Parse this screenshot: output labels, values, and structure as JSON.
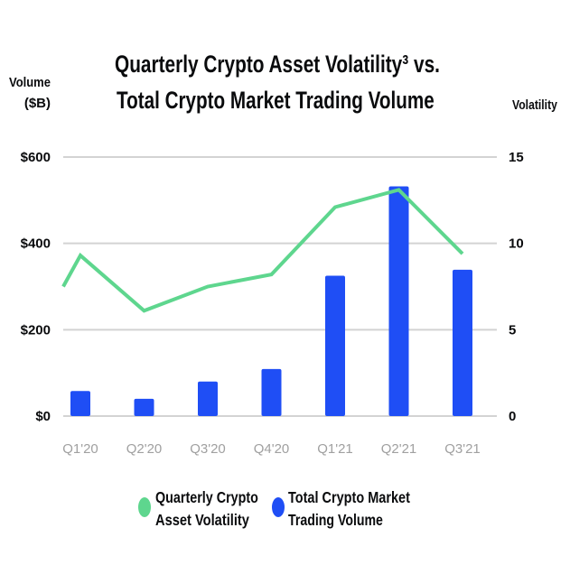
{
  "chart_data": {
    "type": "bar",
    "title_lines": [
      "Quarterly Crypto Asset Volatility³ vs.",
      "Total Crypto Market Trading Volume"
    ],
    "ylabel_left_lines": [
      "Volume",
      "($B)"
    ],
    "ylabel_right": "Volatility",
    "categories": [
      "Q1'20",
      "Q2'20",
      "Q3'20",
      "Q4'20",
      "Q1'21",
      "Q2'21",
      "Q3'21"
    ],
    "ylim_left": [
      0,
      600
    ],
    "yticks_left": [
      0,
      200,
      400,
      600
    ],
    "ytick_labels_left": [
      "$0",
      "$200",
      "$400",
      "$600"
    ],
    "ylim_right": [
      0,
      15
    ],
    "yticks_right": [
      0,
      5,
      10,
      15
    ],
    "ytick_labels_right": [
      "0",
      "5",
      "10",
      "15"
    ],
    "grid": true,
    "legend_placement": "bottom",
    "series": [
      {
        "name": "Total Crypto Market Trading Volume",
        "legend_lines": [
          "Total Crypto Market",
          "Trading Volume"
        ],
        "type": "bar",
        "axis": "left",
        "color": "#1f4ef5",
        "values": [
          58,
          40,
          80,
          109,
          325,
          532,
          339
        ]
      },
      {
        "name": "Quarterly Crypto Asset Volatility",
        "legend_lines": [
          "Quarterly Crypto",
          "Asset Volatility"
        ],
        "type": "line",
        "axis": "right",
        "color": "#5ed68e",
        "values": [
          9.3,
          6.1,
          7.5,
          8.2,
          12.1,
          13.1,
          9.4
        ],
        "left_edge_value": 7.5
      }
    ],
    "gridline_color": "#d3d3d3"
  }
}
